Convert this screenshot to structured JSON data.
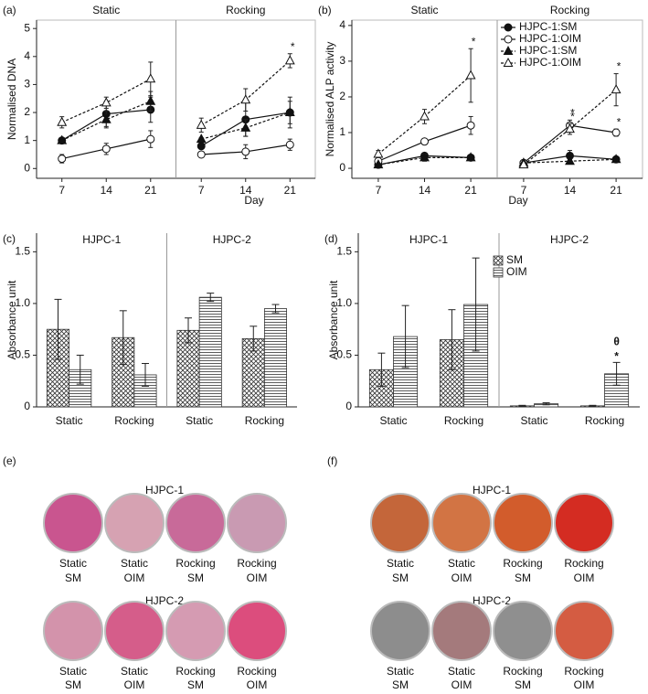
{
  "chart_data": [
    {
      "type": "line",
      "panel_label": "(a)",
      "ylabel": "Normalised DNA",
      "xlabel": "Day",
      "x": [
        7,
        14,
        21
      ],
      "xlim": [
        3,
        25
      ],
      "xticks": [
        7,
        14,
        21
      ],
      "ylim": [
        -0.35,
        5.3
      ],
      "yticks": [
        0,
        1,
        2,
        3,
        4,
        5
      ],
      "series": [
        {
          "marker": "filled-circle",
          "dash": "solid"
        },
        {
          "marker": "open-circle",
          "dash": "solid"
        },
        {
          "marker": "filled-triangle",
          "dash": "dotted"
        },
        {
          "marker": "open-triangle",
          "dash": "dotted"
        }
      ],
      "facets": [
        {
          "title": "Static",
          "values": [
            [
              1.0,
              1.95,
              2.1
            ],
            [
              0.35,
              0.7,
              1.05
            ],
            [
              1.0,
              1.75,
              2.4
            ],
            [
              1.65,
              2.35,
              3.2
            ]
          ],
          "errors": [
            [
              0.05,
              0.45,
              0.45
            ],
            [
              0.15,
              0.2,
              0.3
            ],
            [
              0.05,
              0.3,
              0.35
            ],
            [
              0.2,
              0.2,
              0.6
            ]
          ],
          "annotations": []
        },
        {
          "title": "Rocking",
          "values": [
            [
              0.8,
              1.75,
              2.0
            ],
            [
              0.5,
              0.6,
              0.85
            ],
            [
              1.05,
              1.45,
              2.0
            ],
            [
              1.55,
              2.45,
              3.85
            ]
          ],
          "errors": [
            [
              0.1,
              0.6,
              0.55
            ],
            [
              0.05,
              0.25,
              0.2
            ],
            [
              0.05,
              0.3,
              0.4
            ],
            [
              0.25,
              0.4,
              0.25
            ]
          ],
          "annotations": [
            {
              "text": "*",
              "series": 3,
              "x": 21
            }
          ]
        }
      ]
    },
    {
      "type": "line",
      "panel_label": "(b)",
      "ylabel": "Normalised ALP activity",
      "xlabel": "Day",
      "x": [
        7,
        14,
        21
      ],
      "xlim": [
        3,
        25
      ],
      "xticks": [
        7,
        14,
        21
      ],
      "ylim": [
        -0.28,
        4.15
      ],
      "yticks": [
        0,
        1,
        2,
        3,
        4
      ],
      "series": [
        {
          "name": "HJPC-1:SM",
          "marker": "filled-circle",
          "dash": "solid"
        },
        {
          "name": "HJPC-1:OIM",
          "marker": "open-circle",
          "dash": "solid"
        },
        {
          "name": "HJPC-1:SM",
          "marker": "filled-triangle",
          "dash": "dotted"
        },
        {
          "name": "HJPC-1:OIM",
          "marker": "open-triangle",
          "dash": "dotted"
        }
      ],
      "facets": [
        {
          "title": "Static",
          "values": [
            [
              0.1,
              0.35,
              0.3
            ],
            [
              0.2,
              0.75,
              1.2
            ],
            [
              0.1,
              0.3,
              0.3
            ],
            [
              0.4,
              1.45,
              2.6
            ]
          ],
          "errors": [
            [
              0.02,
              0.05,
              0.05
            ],
            [
              0.05,
              0.05,
              0.25
            ],
            [
              0.02,
              0.1,
              0.05
            ],
            [
              0.1,
              0.2,
              0.75
            ]
          ],
          "annotations": [
            {
              "text": "*",
              "series": 3,
              "x": 21
            }
          ]
        },
        {
          "title": "Rocking",
          "values": [
            [
              0.15,
              0.35,
              0.25
            ],
            [
              0.15,
              1.2,
              1.0
            ],
            [
              0.15,
              0.2,
              0.25
            ],
            [
              0.1,
              1.1,
              2.2
            ]
          ],
          "errors": [
            [
              0.03,
              0.15,
              0.05
            ],
            [
              0.05,
              0.15,
              0.1
            ],
            [
              0.03,
              0.05,
              0.03
            ],
            [
              0.05,
              0.15,
              0.45
            ]
          ],
          "annotations": [
            {
              "text": "*",
              "series": 1,
              "x": 14
            },
            {
              "text": "*",
              "series": 3,
              "x": 14
            },
            {
              "text": "*",
              "series": 1,
              "x": 21
            },
            {
              "text": "*",
              "series": 3,
              "x": 21
            }
          ]
        }
      ]
    },
    {
      "type": "bar",
      "panel_label": "(c)",
      "ylabel": "Absorbance unit",
      "categories": [
        "Static",
        "Rocking"
      ],
      "ylim": [
        0,
        1.68
      ],
      "yticks": [
        0,
        0.5,
        {
          "value": 1,
          "label": "1.0"
        },
        1.5
      ],
      "series": [
        {
          "pattern": "crosshatch"
        },
        {
          "pattern": "horizontal"
        }
      ],
      "facets": [
        {
          "title": "HJPC-1",
          "values": [
            [
              0.75,
              0.67
            ],
            [
              0.36,
              0.31
            ]
          ],
          "errors": [
            [
              0.29,
              0.26
            ],
            [
              0.14,
              0.11
            ]
          ],
          "annotations": []
        },
        {
          "title": "HJPC-2",
          "values": [
            [
              0.74,
              0.66
            ],
            [
              1.06,
              0.95
            ]
          ],
          "errors": [
            [
              0.12,
              0.12
            ],
            [
              0.04,
              0.04
            ]
          ],
          "annotations": []
        }
      ]
    },
    {
      "type": "bar",
      "panel_label": "(d)",
      "ylabel": "Absorbance unit",
      "categories": [
        "Static",
        "Rocking"
      ],
      "ylim": [
        0,
        1.68
      ],
      "yticks": [
        0,
        0.5,
        {
          "value": 1,
          "label": "1.0"
        },
        1.5
      ],
      "series": [
        {
          "name": "SM",
          "pattern": "crosshatch"
        },
        {
          "name": "OIM",
          "pattern": "horizontal"
        }
      ],
      "facets": [
        {
          "title": "HJPC-1",
          "values": [
            [
              0.36,
              0.65
            ],
            [
              0.68,
              0.99
            ]
          ],
          "errors": [
            [
              0.16,
              0.29
            ],
            [
              0.3,
              0.45
            ]
          ],
          "annotations": []
        },
        {
          "title": "HJPC-2",
          "values": [
            [
              0.01,
              0.01
            ],
            [
              0.03,
              0.32
            ]
          ],
          "errors": [
            [
              0.005,
              0.005
            ],
            [
              0.01,
              0.11
            ]
          ],
          "annotations": [
            {
              "text": "*",
              "series": 1,
              "category": 1
            },
            {
              "text": "θ",
              "series": 1,
              "category": 1
            }
          ]
        }
      ]
    }
  ],
  "images": [
    {
      "panel_label": "(e)",
      "groups": [
        {
          "title": "HJPC-1",
          "wells": [
            {
              "label": [
                "Static",
                "SM"
              ],
              "color": "#c9558f"
            },
            {
              "label": [
                "Static",
                "OIM"
              ],
              "color": "#d6a2b2"
            },
            {
              "label": [
                "Rocking",
                "SM"
              ],
              "color": "#c86a99"
            },
            {
              "label": [
                "Rocking",
                "OIM"
              ],
              "color": "#c99ab2"
            }
          ]
        },
        {
          "title": "HJPC-2",
          "wells": [
            {
              "label": [
                "Static",
                "SM"
              ],
              "color": "#d393ab"
            },
            {
              "label": [
                "Static",
                "OIM"
              ],
              "color": "#d55d8a"
            },
            {
              "label": [
                "Rocking",
                "SM"
              ],
              "color": "#d59bb2"
            },
            {
              "label": [
                "Rocking",
                "OIM"
              ],
              "color": "#dc4d7d"
            }
          ]
        }
      ]
    },
    {
      "panel_label": "(f)",
      "groups": [
        {
          "title": "HJPC-1",
          "wells": [
            {
              "label": [
                "Static",
                "SM"
              ],
              "color": "#c4663a"
            },
            {
              "label": [
                "Static",
                "OIM"
              ],
              "color": "#d27444"
            },
            {
              "label": [
                "Rocking",
                "SM"
              ],
              "color": "#d25c2c"
            },
            {
              "label": [
                "Rocking",
                "OIM"
              ],
              "color": "#d42c22"
            }
          ]
        },
        {
          "title": "HJPC-2",
          "wells": [
            {
              "label": [
                "Static",
                "SM"
              ],
              "color": "#8d8d8d"
            },
            {
              "label": [
                "Static",
                "OIM"
              ],
              "color": "#a47a7c"
            },
            {
              "label": [
                "Rocking",
                "SM"
              ],
              "color": "#8f8f8f"
            },
            {
              "label": [
                "Rocking",
                "OIM"
              ],
              "color": "#d45c42"
            }
          ]
        }
      ]
    }
  ]
}
